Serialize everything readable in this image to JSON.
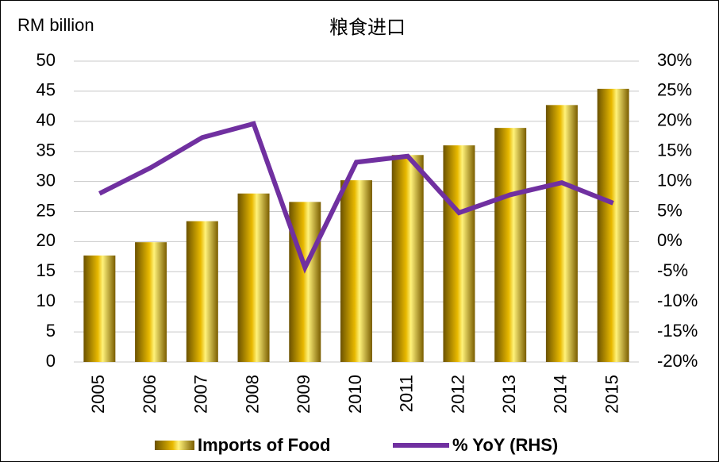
{
  "chart_data": {
    "type": "bar_line",
    "title": "粮食进口",
    "y_label": "RM billion",
    "categories": [
      "2005",
      "2006",
      "2007",
      "2008",
      "2009",
      "2010",
      "2011",
      "2012",
      "2013",
      "2014",
      "2015"
    ],
    "series": [
      {
        "name": "Imports of Food",
        "type": "bar",
        "color": "#e8b900",
        "values": [
          17.7,
          19.9,
          23.4,
          28.0,
          26.6,
          30.2,
          34.4,
          36.0,
          38.9,
          42.7,
          45.4
        ]
      },
      {
        "name": "% YoY (RHS)",
        "type": "line",
        "axis": "y2",
        "color": "#7030a0",
        "values": [
          8.0,
          12.3,
          17.3,
          19.6,
          -4.3,
          13.2,
          14.2,
          4.8,
          7.8,
          9.8,
          6.4
        ]
      }
    ],
    "ylim": [
      0,
      50
    ],
    "yticks": [
      0,
      5,
      10,
      15,
      20,
      25,
      30,
      35,
      40,
      45,
      50
    ],
    "y2lim": [
      -20,
      30
    ],
    "y2ticks": [
      {
        "value": -20,
        "label": "-20%"
      },
      {
        "value": -15,
        "label": "-15%"
      },
      {
        "value": -10,
        "label": "-10%"
      },
      {
        "value": -5,
        "label": "-5%"
      },
      {
        "value": 0,
        "label": "0%"
      },
      {
        "value": 5,
        "label": "5%"
      },
      {
        "value": 10,
        "label": "10%"
      },
      {
        "value": 15,
        "label": "15%"
      },
      {
        "value": 20,
        "label": "20%"
      },
      {
        "value": 25,
        "label": "25%"
      },
      {
        "value": 30,
        "label": "30%"
      }
    ],
    "legend": "bottom"
  }
}
